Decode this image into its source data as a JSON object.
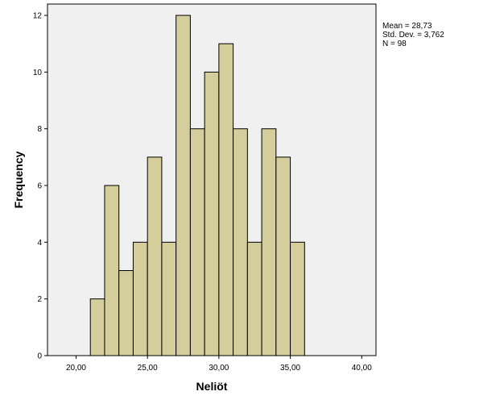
{
  "chart_data": {
    "type": "bar",
    "subtype": "histogram",
    "xlabel": "Neliöt",
    "ylabel": "Frequency",
    "xlim": [
      18.0,
      41.0
    ],
    "ylim": [
      0,
      12.4
    ],
    "xticks": [
      20,
      25,
      30,
      35,
      40
    ],
    "xtick_labels": [
      "20,00",
      "25,00",
      "30,00",
      "35,00",
      "40,00"
    ],
    "yticks": [
      0,
      2,
      4,
      6,
      8,
      10,
      12
    ],
    "ytick_labels": [
      "0",
      "2",
      "4",
      "6",
      "8",
      "10",
      "12"
    ],
    "bin_edges": [
      21.0,
      22.0,
      23.0,
      24.0,
      25.0,
      26.0,
      27.0,
      28.0,
      29.0,
      30.0,
      31.0,
      32.0,
      33.0,
      34.0,
      35.0,
      36.0
    ],
    "values": [
      2,
      6,
      3,
      4,
      7,
      4,
      12,
      8,
      10,
      11,
      8,
      4,
      8,
      7,
      4
    ],
    "bar_color": "#d3ce9c",
    "bar_stroke": "#000000",
    "plot_background": "#f0f0f0",
    "grid": false
  },
  "stats": {
    "mean": "Mean = 28,73",
    "std": "Std. Dev. = 3,762",
    "n": "N = 98"
  }
}
